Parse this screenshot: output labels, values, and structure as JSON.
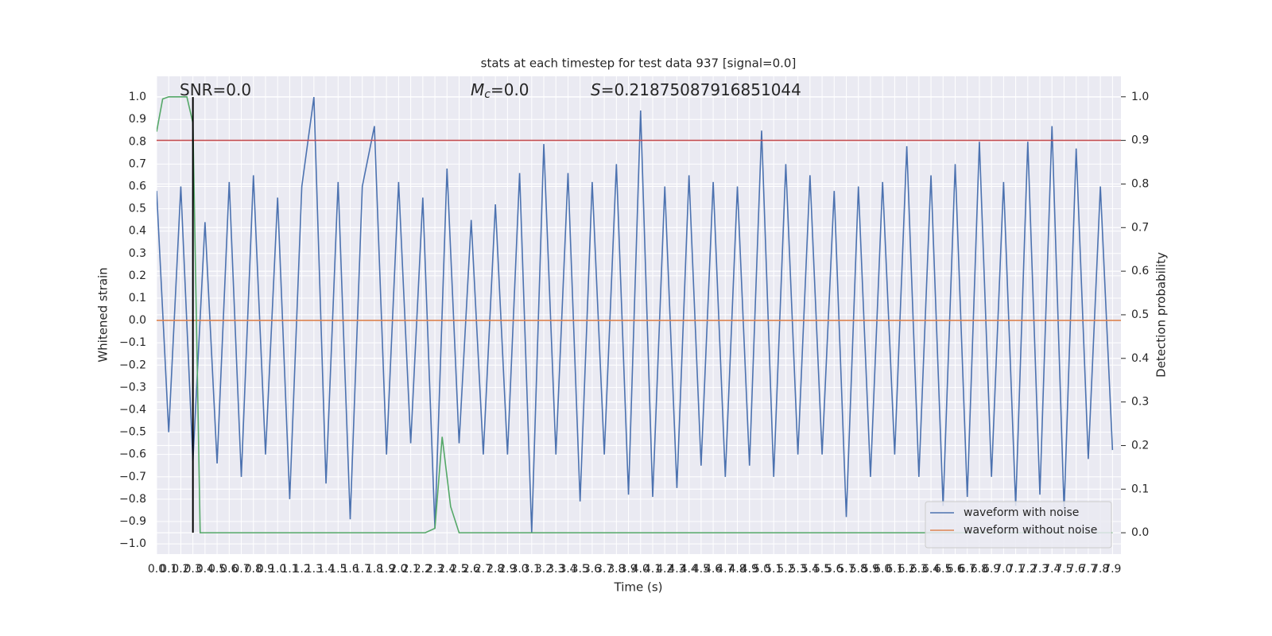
{
  "chart_data": {
    "type": "line",
    "title": "stats at each timestep for test data 937 [signal=0.0]",
    "xlabel": "Time (s)",
    "ylabel": "Whitened strain",
    "y2label": "Detection probability",
    "annotations": [
      {
        "text": "SNR=0.0"
      },
      {
        "symbol": "M",
        "sub": "c",
        "text": "=0.0"
      },
      {
        "symbol": "S",
        "text": "=0.21875087916851044"
      }
    ],
    "xlim": [
      0,
      7.97
    ],
    "ylim": [
      -1.046,
      1.093
    ],
    "y2lim": [
      -0.049,
      1.047
    ],
    "grid": true,
    "legend": "lower right",
    "xticks": [
      {
        "value": 0,
        "label": "0.0"
      },
      0.1,
      0.2,
      0.3,
      0.4,
      0.5,
      0.6,
      0.7,
      0.8,
      0.9,
      {
        "value": 1,
        "label": "1.0"
      },
      1.1,
      1.2,
      1.3,
      1.4,
      1.5,
      1.6,
      1.7,
      1.8,
      1.9,
      {
        "value": 2,
        "label": "2.0"
      },
      2.1,
      2.2,
      2.3,
      2.4,
      2.5,
      2.6,
      2.7,
      2.8,
      2.9,
      {
        "value": 3,
        "label": "3.0"
      },
      3.1,
      3.2,
      3.3,
      3.4,
      3.5,
      3.6,
      3.7,
      3.8,
      3.9,
      {
        "value": 4,
        "label": "4.0"
      },
      4.1,
      4.2,
      4.3,
      4.4,
      4.5,
      4.6,
      4.7,
      4.8,
      4.9,
      {
        "value": 5,
        "label": "5.0"
      },
      5.1,
      5.2,
      5.3,
      5.4,
      5.5,
      5.6,
      5.7,
      5.8,
      5.9,
      {
        "value": 6,
        "label": "6.0"
      },
      6.1,
      6.2,
      6.3,
      6.4,
      6.5,
      6.6,
      6.7,
      6.8,
      6.9,
      {
        "value": 7,
        "label": "7.0"
      },
      7.1,
      7.2,
      7.3,
      7.4,
      7.5,
      7.6,
      7.7,
      7.8,
      7.9
    ],
    "yticks": [
      {
        "value": -1,
        "label": "−1.0"
      },
      {
        "value": -0.9,
        "label": "−0.9"
      },
      {
        "value": -0.8,
        "label": "−0.8"
      },
      {
        "value": -0.7,
        "label": "−0.7"
      },
      {
        "value": -0.6,
        "label": "−0.6"
      },
      {
        "value": -0.5,
        "label": "−0.5"
      },
      {
        "value": -0.4,
        "label": "−0.4"
      },
      {
        "value": -0.3,
        "label": "−0.3"
      },
      {
        "value": -0.2,
        "label": "−0.2"
      },
      {
        "value": -0.1,
        "label": "−0.1"
      },
      {
        "value": 0,
        "label": "0.0"
      },
      0.1,
      0.2,
      0.3,
      0.4,
      0.5,
      0.6,
      0.7,
      0.8,
      0.9,
      {
        "value": 1,
        "label": "1.0"
      }
    ],
    "y2ticks": [
      {
        "value": 0,
        "label": "0.0"
      },
      0.1,
      0.2,
      0.3,
      0.4,
      0.5,
      0.6,
      0.7,
      0.8,
      0.9,
      {
        "value": 1,
        "label": "1.0"
      }
    ],
    "vline": {
      "x": 0.3,
      "y": [
        -0.95,
        1.0
      ],
      "color": "#000000"
    },
    "series": [
      {
        "name": "waveform with noise",
        "color": "#4c72b0",
        "x": [
          0,
          0.1,
          0.2,
          0.3,
          0.4,
          0.5,
          0.6,
          0.7,
          0.8,
          0.9,
          1,
          1.1,
          1.2,
          1.3,
          1.4,
          1.5,
          1.6,
          1.7,
          1.8,
          1.9,
          2,
          2.1,
          2.2,
          2.3,
          2.4,
          2.5,
          2.6,
          2.7,
          2.8,
          2.9,
          3,
          3.1,
          3.2,
          3.3,
          3.4,
          3.5,
          3.6,
          3.7,
          3.8,
          3.9,
          4,
          4.1,
          4.2,
          4.3,
          4.4,
          4.5,
          4.6,
          4.7,
          4.8,
          4.9,
          5,
          5.1,
          5.2,
          5.3,
          5.4,
          5.5,
          5.6,
          5.7,
          5.8,
          5.9,
          6,
          6.1,
          6.2,
          6.3,
          6.4,
          6.5,
          6.6,
          6.7,
          6.8,
          6.9,
          7,
          7.1,
          7.2,
          7.3,
          7.4,
          7.5,
          7.6,
          7.7,
          7.8,
          7.9
        ],
        "values": [
          0.58,
          -0.5,
          0.6,
          -0.63,
          0.44,
          -0.64,
          0.62,
          -0.7,
          0.65,
          -0.6,
          0.55,
          -0.8,
          0.6,
          1.0,
          -0.73,
          0.62,
          -0.89,
          0.6,
          0.87,
          -0.6,
          0.62,
          -0.55,
          0.55,
          -0.93,
          0.68,
          -0.55,
          0.45,
          -0.6,
          0.52,
          -0.6,
          0.66,
          -0.95,
          0.79,
          -0.6,
          0.66,
          -0.81,
          0.62,
          -0.6,
          0.7,
          -0.78,
          0.94,
          -0.79,
          0.6,
          -0.75,
          0.65,
          -0.65,
          0.62,
          -0.7,
          0.6,
          -0.65,
          0.85,
          -0.7,
          0.7,
          -0.6,
          0.65,
          -0.6,
          0.58,
          -0.88,
          0.6,
          -0.7,
          0.62,
          -0.6,
          0.78,
          -0.7,
          0.65,
          -0.83,
          0.7,
          -0.79,
          0.8,
          -0.7,
          0.62,
          -0.83,
          0.8,
          -0.78,
          0.87,
          -0.85,
          0.77,
          -0.62,
          0.6,
          -0.58
        ]
      },
      {
        "name": "waveform without noise",
        "color": "#dd8452",
        "x": [
          0,
          7.97
        ],
        "values": [
          0,
          0
        ]
      },
      {
        "color": "#55a868",
        "axis": "y2",
        "x": [
          0,
          0.05,
          0.1,
          0.25,
          0.3,
          0.36,
          2.22,
          2.3,
          2.36,
          2.43,
          2.5,
          7.9
        ],
        "values": [
          0.92,
          0.995,
          1.0,
          1.0,
          0.94,
          0.0,
          0.0,
          0.01,
          0.22,
          0.06,
          0.0,
          0.0
        ]
      },
      {
        "color": "#c44e52",
        "axis": "y2",
        "x": [
          0,
          7.97
        ],
        "values": [
          0.9,
          0.9
        ]
      }
    ]
  }
}
